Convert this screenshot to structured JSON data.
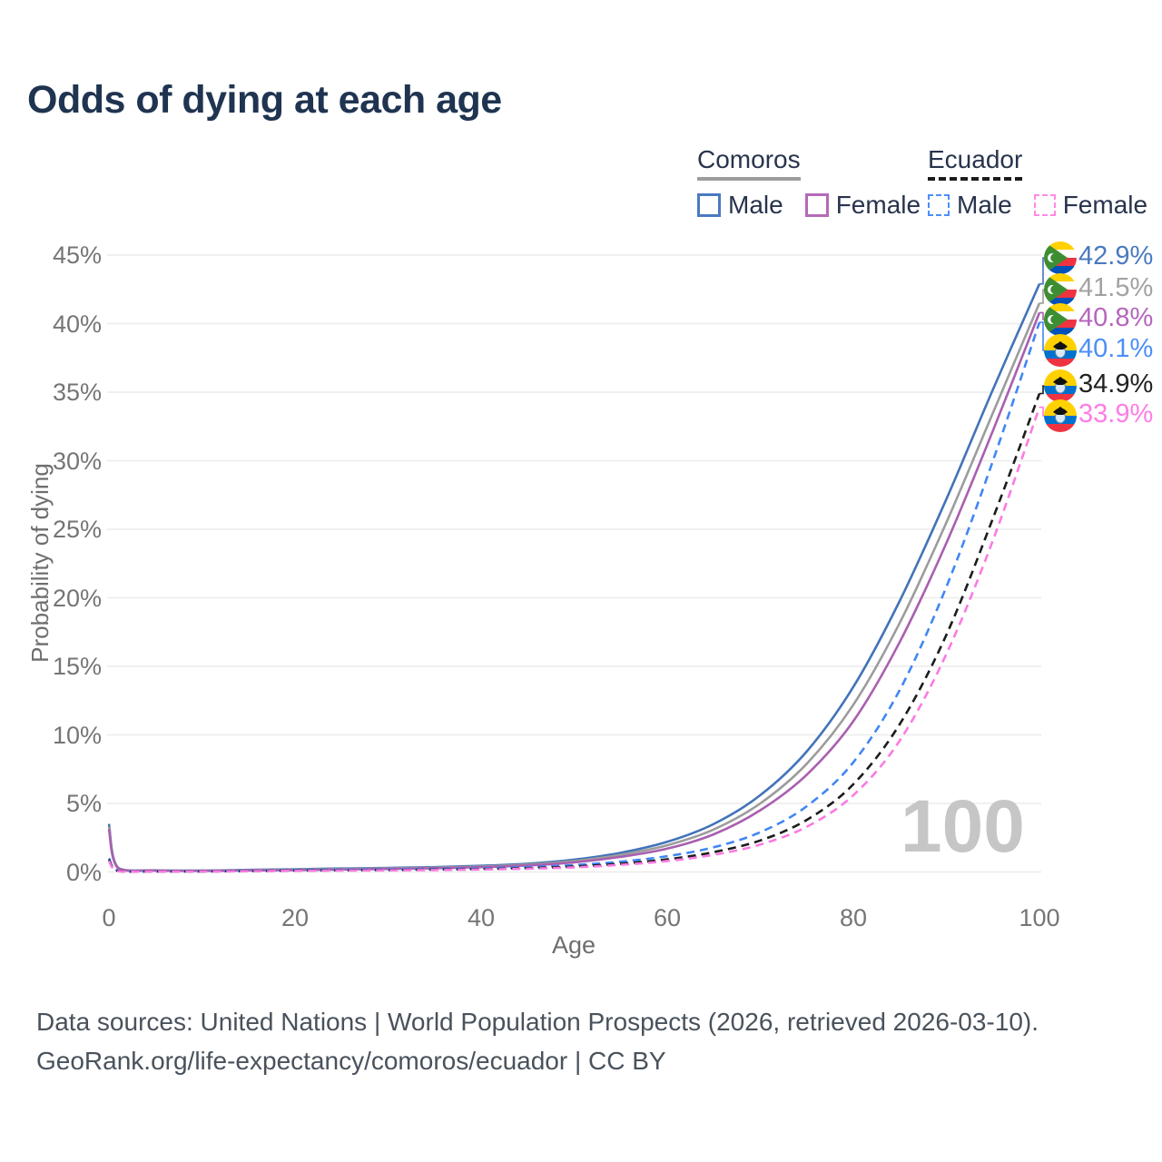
{
  "title": "Odds of dying at each age",
  "legend": {
    "groups": [
      {
        "label": "Comoros",
        "line_style": "solid",
        "line_color": "#9c9c9c",
        "items": [
          {
            "label": "Male",
            "color": "#4a7ac0",
            "dashed": false
          },
          {
            "label": "Female",
            "color": "#b46ab8",
            "dashed": false
          }
        ]
      },
      {
        "label": "Ecuador",
        "line_style": "dashed",
        "line_color": "#1c1c1c",
        "items": [
          {
            "label": "Male",
            "color": "#4c8ef8",
            "dashed": true
          },
          {
            "label": "Female",
            "color": "#ff8ae8",
            "dashed": true
          }
        ]
      }
    ]
  },
  "chart_data": {
    "type": "line",
    "title": "Odds of dying at each age",
    "xlabel": "Age",
    "ylabel": "Probability of dying",
    "xlim": [
      0,
      100
    ],
    "ylim": [
      0,
      45
    ],
    "xticks": [
      0,
      20,
      40,
      60,
      80,
      100
    ],
    "xtick_labels": [
      "0",
      "20",
      "40",
      "60",
      "80",
      "100"
    ],
    "yticks": [
      0,
      5,
      10,
      15,
      20,
      25,
      30,
      35,
      40,
      45
    ],
    "ytick_labels": [
      "0%",
      "5%",
      "10%",
      "15%",
      "20%",
      "25%",
      "30%",
      "35%",
      "40%",
      "45%"
    ],
    "grid": "horizontal",
    "legend_position": "top-right",
    "watermark": "100",
    "x_ages": [
      0,
      1,
      5,
      10,
      15,
      20,
      25,
      30,
      35,
      40,
      45,
      50,
      55,
      60,
      65,
      70,
      75,
      80,
      85,
      90,
      95,
      100
    ],
    "series": [
      {
        "name": "Comoros Male",
        "color": "#4273b9",
        "dashed": false,
        "values": [
          3.5,
          0.3,
          0.12,
          0.1,
          0.15,
          0.2,
          0.25,
          0.3,
          0.35,
          0.45,
          0.6,
          0.9,
          1.4,
          2.2,
          3.5,
          5.6,
          8.8,
          13.5,
          19.8,
          27.2,
          35.2,
          42.9
        ]
      },
      {
        "name": "Comoros Combined",
        "color": "#9c9c9c",
        "dashed": false,
        "values": [
          3.3,
          0.28,
          0.11,
          0.09,
          0.13,
          0.17,
          0.21,
          0.26,
          0.31,
          0.4,
          0.54,
          0.8,
          1.25,
          1.95,
          3.1,
          5.0,
          7.9,
          12.2,
          18.2,
          25.5,
          33.5,
          41.5
        ]
      },
      {
        "name": "Comoros Female",
        "color": "#a95fb0",
        "dashed": false,
        "values": [
          3.1,
          0.26,
          0.1,
          0.08,
          0.11,
          0.14,
          0.18,
          0.22,
          0.27,
          0.35,
          0.48,
          0.7,
          1.1,
          1.7,
          2.75,
          4.5,
          7.1,
          11.0,
          16.8,
          24.0,
          32.2,
          40.8
        ]
      },
      {
        "name": "Ecuador Male",
        "color": "#4186f5",
        "dashed": true,
        "values": [
          1.0,
          0.08,
          0.04,
          0.04,
          0.08,
          0.13,
          0.16,
          0.18,
          0.21,
          0.26,
          0.35,
          0.5,
          0.75,
          1.15,
          1.8,
          2.9,
          4.8,
          8.0,
          13.3,
          20.8,
          30.0,
          40.1
        ]
      },
      {
        "name": "Ecuador Combined",
        "color": "#1c1c1c",
        "dashed": true,
        "values": [
          0.9,
          0.07,
          0.04,
          0.04,
          0.06,
          0.1,
          0.12,
          0.14,
          0.17,
          0.21,
          0.28,
          0.4,
          0.6,
          0.92,
          1.45,
          2.3,
          3.8,
          6.4,
          10.8,
          17.3,
          25.8,
          34.9
        ]
      },
      {
        "name": "Ecuador Female",
        "color": "#fb7ae2",
        "dashed": true,
        "values": [
          0.8,
          0.06,
          0.03,
          0.03,
          0.05,
          0.08,
          0.1,
          0.12,
          0.14,
          0.18,
          0.24,
          0.34,
          0.52,
          0.8,
          1.25,
          2.0,
          3.3,
          5.6,
          9.6,
          15.9,
          24.2,
          33.9
        ]
      }
    ],
    "end_labels": [
      {
        "series": "Comoros Male",
        "value": "42.9%",
        "flag": "comoros-flag-icon",
        "color": "#4a7ac0"
      },
      {
        "series": "Comoros Combined",
        "value": "41.5%",
        "flag": "comoros-flag-icon",
        "color": "#a2a2a2"
      },
      {
        "series": "Comoros Female",
        "value": "40.8%",
        "flag": "comoros-flag-icon",
        "color": "#b565bd"
      },
      {
        "series": "Ecuador Male",
        "value": "40.1%",
        "flag": "ecuador-flag-icon",
        "color": "#4c8ef8"
      },
      {
        "series": "Ecuador Combined",
        "value": "34.9%",
        "flag": "ecuador-flag-icon",
        "color": "#222222"
      },
      {
        "series": "Ecuador Female",
        "value": "33.9%",
        "flag": "ecuador-flag-icon",
        "color": "#ff7ce6"
      }
    ]
  },
  "footer": {
    "line1": "Data sources: United Nations | World Population Prospects (2026, retrieved 2026-03-10).",
    "line2": "GeoRank.org/life-expectancy/comoros/ecuador | CC BY"
  }
}
